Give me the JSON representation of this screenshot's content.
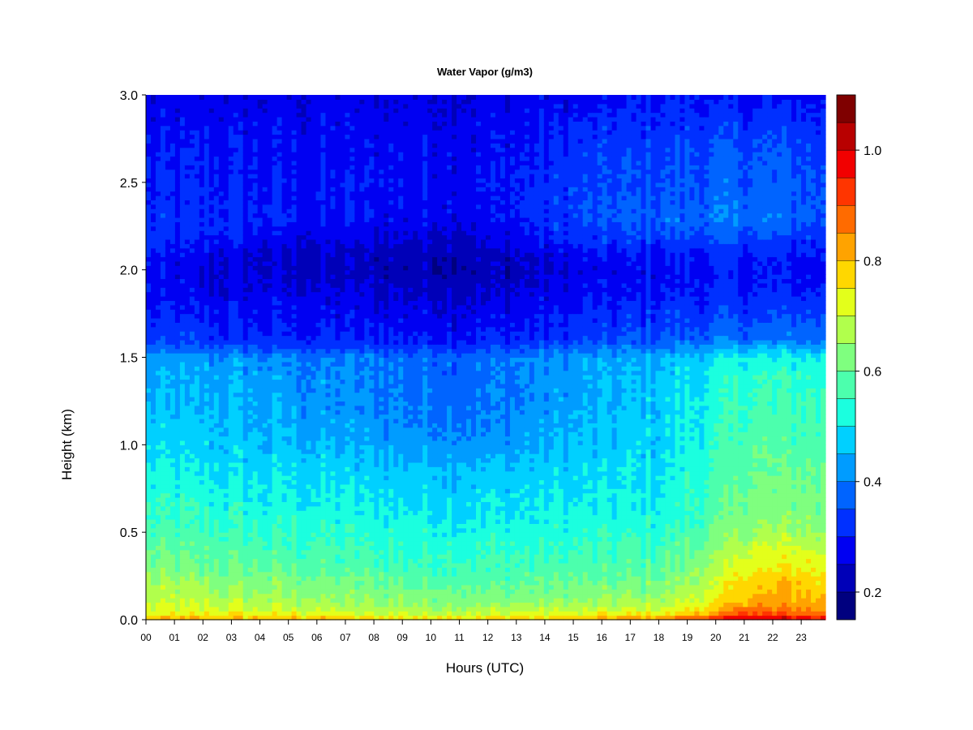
{
  "chart_data": {
    "type": "heatmap",
    "title": "Water Vapor (g/m3)",
    "xlabel": "Hours (UTC)",
    "ylabel": "Height (km)",
    "xlim": [
      0,
      23.85
    ],
    "ylim": [
      0.0,
      3.0
    ],
    "x_ticks": [
      "00",
      "01",
      "02",
      "03",
      "04",
      "05",
      "06",
      "07",
      "08",
      "09",
      "10",
      "11",
      "12",
      "13",
      "14",
      "15",
      "16",
      "17",
      "18",
      "19",
      "20",
      "21",
      "22",
      "23"
    ],
    "y_ticks": [
      "0.0",
      "0.5",
      "1.0",
      "1.5",
      "2.0",
      "2.5",
      "3.0"
    ],
    "colorbar": {
      "min": 0.15,
      "max": 1.1,
      "ticks": [
        "0.2",
        "0.4",
        "0.6",
        "0.8",
        "1.0"
      ],
      "levels": [
        0.15,
        0.2,
        0.25,
        0.3,
        0.35,
        0.4,
        0.45,
        0.5,
        0.55,
        0.6,
        0.65,
        0.7,
        0.75,
        0.8,
        0.85,
        0.9,
        0.95,
        1.0,
        1.05,
        1.1
      ],
      "colors": [
        "#00007F",
        "#0000B8",
        "#0000F2",
        "#0030FF",
        "#0064FF",
        "#009CFF",
        "#00D0FF",
        "#1BFFDF",
        "#4CFFAD",
        "#7FFF7F",
        "#B1FF4C",
        "#E3FF1B",
        "#FFD700",
        "#FFA300",
        "#FF6B00",
        "#FF3500",
        "#F20000",
        "#B80000",
        "#7F0000"
      ]
    },
    "grid": false,
    "legend": "colorbar-right",
    "profiles": {
      "heights_km": [
        0.0,
        0.02,
        0.05,
        0.1,
        0.2,
        0.3,
        0.4,
        0.5,
        0.6,
        0.8,
        1.0,
        1.2,
        1.4,
        1.5,
        1.55,
        1.6,
        1.8,
        1.9,
        2.0,
        2.1,
        2.2,
        2.3,
        2.5,
        2.7,
        2.9,
        3.0
      ],
      "by_hour": [
        {
          "hour": 0,
          "values": [
            0.85,
            0.75,
            0.72,
            0.7,
            0.66,
            0.62,
            0.6,
            0.57,
            0.55,
            0.52,
            0.48,
            0.45,
            0.44,
            0.42,
            0.37,
            0.33,
            0.29,
            0.28,
            0.28,
            0.29,
            0.32,
            0.31,
            0.3,
            0.29,
            0.27,
            0.26
          ]
        },
        {
          "hour": 3,
          "values": [
            0.84,
            0.75,
            0.72,
            0.68,
            0.64,
            0.6,
            0.58,
            0.55,
            0.53,
            0.5,
            0.47,
            0.45,
            0.44,
            0.42,
            0.36,
            0.32,
            0.28,
            0.26,
            0.25,
            0.26,
            0.3,
            0.31,
            0.3,
            0.29,
            0.27,
            0.26
          ]
        },
        {
          "hour": 6,
          "values": [
            0.82,
            0.74,
            0.7,
            0.66,
            0.62,
            0.58,
            0.56,
            0.54,
            0.52,
            0.49,
            0.45,
            0.42,
            0.41,
            0.4,
            0.35,
            0.31,
            0.27,
            0.25,
            0.23,
            0.24,
            0.27,
            0.29,
            0.29,
            0.28,
            0.27,
            0.26
          ]
        },
        {
          "hour": 9,
          "values": [
            0.8,
            0.72,
            0.68,
            0.64,
            0.6,
            0.57,
            0.55,
            0.53,
            0.51,
            0.48,
            0.43,
            0.4,
            0.39,
            0.38,
            0.34,
            0.3,
            0.26,
            0.24,
            0.22,
            0.23,
            0.26,
            0.28,
            0.29,
            0.28,
            0.27,
            0.26
          ]
        },
        {
          "hour": 12,
          "values": [
            0.8,
            0.72,
            0.68,
            0.63,
            0.59,
            0.56,
            0.54,
            0.52,
            0.5,
            0.47,
            0.42,
            0.39,
            0.38,
            0.38,
            0.34,
            0.3,
            0.26,
            0.24,
            0.22,
            0.23,
            0.26,
            0.28,
            0.29,
            0.28,
            0.27,
            0.26
          ]
        },
        {
          "hour": 15,
          "values": [
            0.84,
            0.74,
            0.7,
            0.65,
            0.6,
            0.57,
            0.55,
            0.53,
            0.51,
            0.49,
            0.46,
            0.44,
            0.43,
            0.42,
            0.37,
            0.33,
            0.29,
            0.27,
            0.26,
            0.28,
            0.32,
            0.34,
            0.33,
            0.32,
            0.29,
            0.27
          ]
        },
        {
          "hour": 18,
          "values": [
            0.9,
            0.78,
            0.72,
            0.67,
            0.62,
            0.58,
            0.56,
            0.54,
            0.52,
            0.5,
            0.48,
            0.47,
            0.46,
            0.45,
            0.4,
            0.36,
            0.31,
            0.29,
            0.28,
            0.3,
            0.34,
            0.37,
            0.35,
            0.34,
            0.31,
            0.29
          ]
        },
        {
          "hour": 20,
          "values": [
            0.98,
            0.85,
            0.8,
            0.74,
            0.7,
            0.66,
            0.63,
            0.6,
            0.58,
            0.56,
            0.54,
            0.53,
            0.51,
            0.49,
            0.44,
            0.38,
            0.32,
            0.3,
            0.29,
            0.31,
            0.36,
            0.38,
            0.36,
            0.35,
            0.31,
            0.29
          ]
        },
        {
          "hour": 21,
          "values": [
            1.05,
            0.95,
            0.88,
            0.82,
            0.78,
            0.74,
            0.7,
            0.65,
            0.62,
            0.6,
            0.58,
            0.56,
            0.54,
            0.51,
            0.45,
            0.38,
            0.32,
            0.3,
            0.29,
            0.31,
            0.36,
            0.39,
            0.37,
            0.35,
            0.31,
            0.29
          ]
        },
        {
          "hour": 23,
          "values": [
            1.02,
            0.93,
            0.86,
            0.82,
            0.79,
            0.75,
            0.71,
            0.66,
            0.63,
            0.61,
            0.58,
            0.56,
            0.54,
            0.51,
            0.46,
            0.39,
            0.33,
            0.3,
            0.28,
            0.3,
            0.34,
            0.37,
            0.36,
            0.34,
            0.31,
            0.29
          ]
        },
        {
          "hour": 23.85,
          "values": [
            0.98,
            0.9,
            0.84,
            0.8,
            0.77,
            0.73,
            0.69,
            0.65,
            0.62,
            0.6,
            0.57,
            0.55,
            0.53,
            0.5,
            0.45,
            0.38,
            0.32,
            0.29,
            0.27,
            0.29,
            0.32,
            0.35,
            0.34,
            0.33,
            0.3,
            0.28
          ]
        }
      ]
    }
  }
}
